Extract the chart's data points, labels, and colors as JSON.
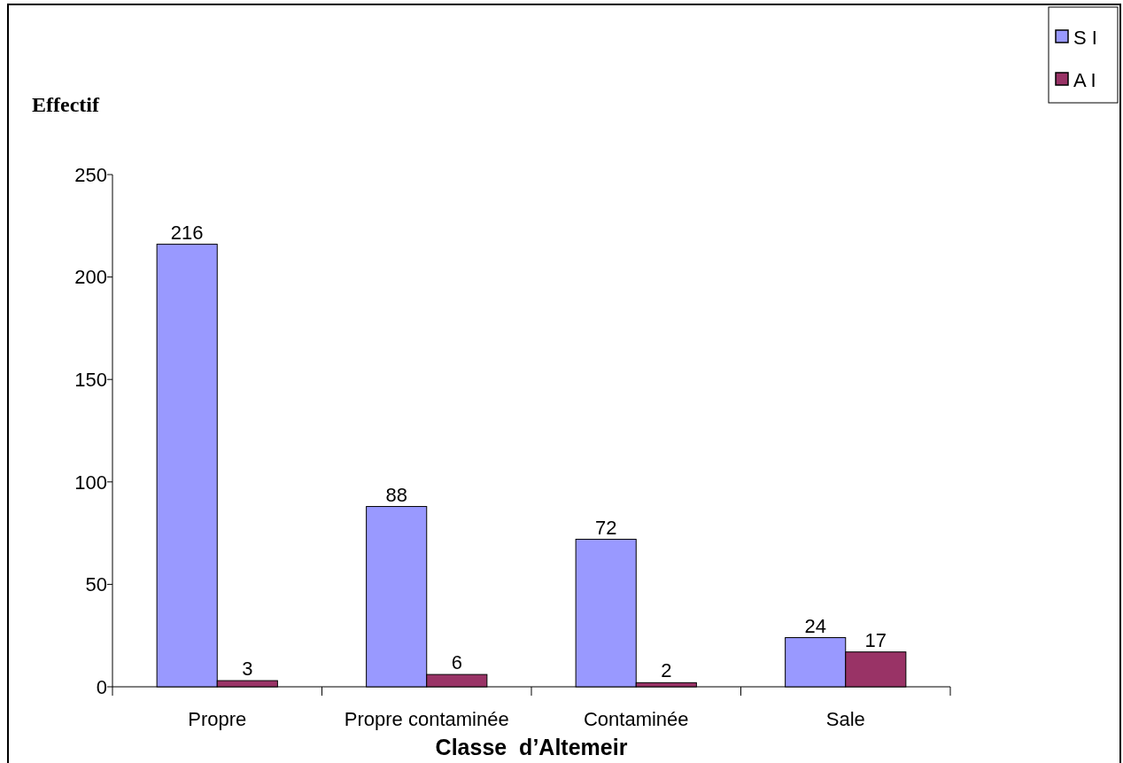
{
  "chart_data": {
    "type": "bar",
    "xlabel": "Classe  d’Altemeir",
    "ylabel": "Effectif",
    "categories": [
      "Propre",
      "Propre contaminée",
      "Contaminée",
      "Sale"
    ],
    "series": [
      {
        "name": "S I",
        "color": "#9999ff",
        "values": [
          216,
          88,
          72,
          24
        ]
      },
      {
        "name": "A I",
        "color": "#993366",
        "values": [
          3,
          6,
          2,
          17
        ]
      }
    ],
    "ylim": [
      0,
      250
    ],
    "yticks": [
      0,
      50,
      100,
      150,
      200,
      250
    ],
    "data_labels": true,
    "legend": "top right"
  }
}
